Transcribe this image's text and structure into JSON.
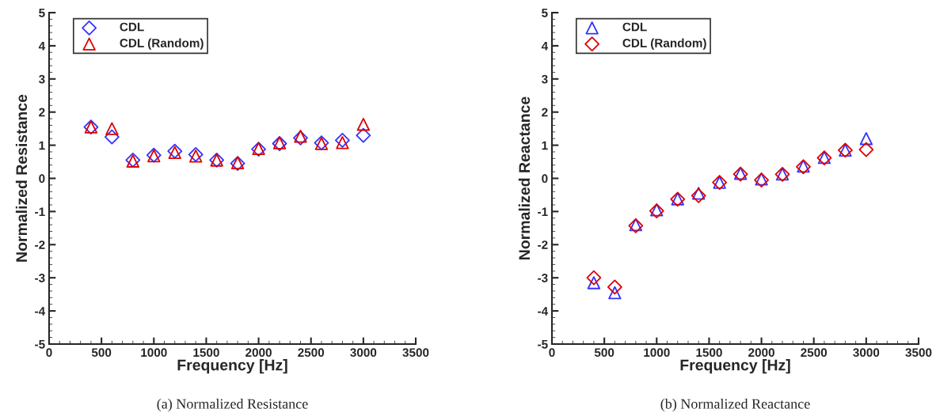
{
  "chart_data": [
    {
      "type": "scatter",
      "xlabel": "Frequency [Hz]",
      "ylabel": "Normalized Resistance",
      "annotations": [
        "(a) Normalized Resistance"
      ],
      "x": [
        400,
        600,
        800,
        1000,
        1200,
        1400,
        1600,
        1800,
        2000,
        2200,
        2400,
        2600,
        2800,
        3000
      ],
      "series": [
        {
          "name": "CDL",
          "color": "#3333ff",
          "marker": "diamond",
          "values": [
            1.55,
            1.25,
            0.55,
            0.7,
            0.82,
            0.72,
            0.55,
            0.45,
            0.88,
            1.05,
            1.22,
            1.07,
            1.15,
            1.3
          ]
        },
        {
          "name": "CDL (Random)",
          "color": "#dd0000",
          "marker": "triangle",
          "values": [
            1.55,
            1.5,
            0.52,
            0.68,
            0.78,
            0.67,
            0.55,
            0.47,
            0.9,
            1.07,
            1.27,
            1.05,
            1.08,
            1.63
          ]
        }
      ],
      "xlim": [
        0,
        3500
      ],
      "xticks": [
        0,
        500,
        1000,
        1500,
        2000,
        2500,
        3000,
        3500
      ],
      "ylim": [
        -5,
        5
      ],
      "yticks": [
        -5,
        -4,
        -3,
        -2,
        -1,
        0,
        1,
        2,
        3,
        4,
        5
      ],
      "grid": false,
      "legend": "top left"
    },
    {
      "type": "scatter",
      "xlabel": "Frequency [Hz]",
      "ylabel": "Normalized Reactance",
      "annotations": [
        "(b) Normalized Reactance"
      ],
      "x": [
        400,
        600,
        800,
        1000,
        1200,
        1400,
        1600,
        1800,
        2000,
        2200,
        2400,
        2600,
        2800,
        3000
      ],
      "series": [
        {
          "name": "CDL",
          "color": "#3333ff",
          "marker": "triangle",
          "values": [
            -3.15,
            -3.45,
            -1.4,
            -0.95,
            -0.62,
            -0.45,
            -0.12,
            0.15,
            -0.02,
            0.13,
            0.37,
            0.63,
            0.85,
            1.2
          ]
        },
        {
          "name": "CDL (Random)",
          "color": "#dd0000",
          "marker": "diamond",
          "values": [
            -3.0,
            -3.28,
            -1.43,
            -0.98,
            -0.63,
            -0.52,
            -0.12,
            0.13,
            -0.05,
            0.12,
            0.35,
            0.62,
            0.85,
            0.87
          ]
        }
      ],
      "xlim": [
        0,
        3500
      ],
      "xticks": [
        0,
        500,
        1000,
        1500,
        2000,
        2500,
        3000,
        3500
      ],
      "ylim": [
        -5,
        5
      ],
      "yticks": [
        -5,
        -4,
        -3,
        -2,
        -1,
        0,
        1,
        2,
        3,
        4,
        5
      ],
      "grid": false,
      "legend": "top left"
    }
  ]
}
